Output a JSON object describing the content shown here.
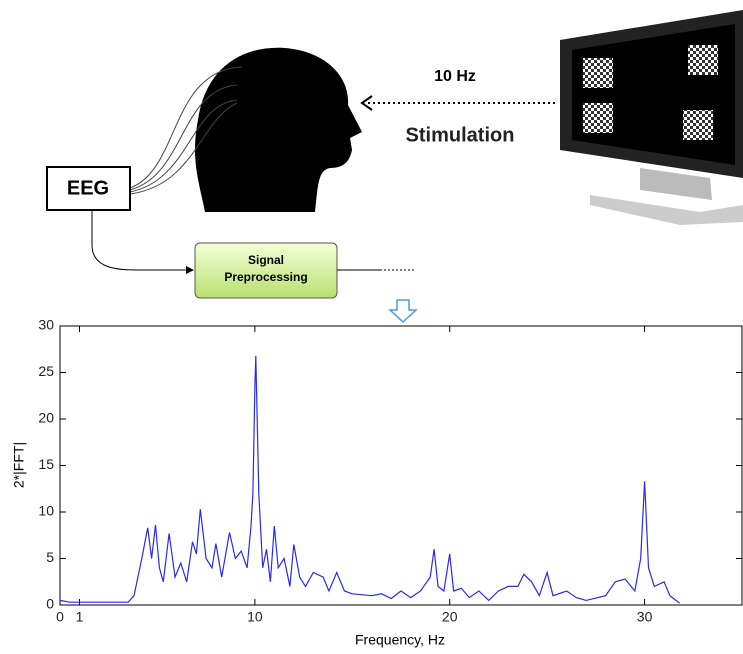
{
  "diagram": {
    "eeg": "EEG",
    "frequency": "10 Hz",
    "stimulation": "Stimulation",
    "processing": [
      "Signal",
      "Preprocessing"
    ]
  },
  "chart_data": {
    "type": "line",
    "xlabel": "Frequency, Hz",
    "ylabel": "2*|FFT|",
    "xlim": [
      0,
      35
    ],
    "ylim": [
      0,
      30
    ],
    "xticks": [
      0,
      1,
      10,
      20,
      30
    ],
    "yticks": [
      0,
      5,
      10,
      15,
      20,
      25,
      30
    ],
    "x": [
      0,
      0.5,
      1,
      2,
      3,
      3.5,
      3.8,
      4.2,
      4.5,
      4.7,
      4.9,
      5.1,
      5.3,
      5.6,
      5.9,
      6.2,
      6.5,
      6.8,
      7.0,
      7.2,
      7.5,
      7.8,
      8.0,
      8.3,
      8.7,
      9.0,
      9.3,
      9.6,
      9.8,
      9.9,
      10.0,
      10.05,
      10.2,
      10.4,
      10.6,
      10.8,
      11.0,
      11.2,
      11.5,
      11.8,
      12.0,
      12.3,
      12.6,
      13.0,
      13.5,
      13.8,
      14.2,
      14.6,
      15,
      16,
      16.5,
      17,
      17.5,
      18,
      18.5,
      19,
      19.2,
      19.4,
      19.7,
      20.0,
      20.2,
      20.6,
      21,
      21.5,
      22,
      22.5,
      23,
      23.5,
      23.8,
      24.2,
      24.6,
      25.0,
      25.3,
      26,
      26.5,
      27,
      28,
      28.5,
      29,
      29.5,
      29.8,
      30.0,
      30.2,
      30.5,
      31,
      31.3,
      31.8
    ],
    "series": [
      {
        "color": "#2a2aee",
        "values": [
          0.5,
          0.3,
          0.3,
          0.3,
          0.3,
          0.3,
          1,
          5,
          8.3,
          5,
          8.6,
          4,
          2.5,
          7.7,
          3,
          4.5,
          2.5,
          6.8,
          5.5,
          10.3,
          5,
          4,
          6.6,
          3,
          7.8,
          5,
          5.8,
          4,
          8.5,
          12,
          23.5,
          26.8,
          12,
          4,
          6,
          2.5,
          8.5,
          4,
          5,
          2,
          6.5,
          3,
          2,
          3.5,
          3,
          1.5,
          3.5,
          1.5,
          1.2,
          1,
          1.2,
          0.7,
          1.5,
          0.8,
          1.5,
          3,
          6,
          2,
          1.5,
          5.5,
          1.5,
          1.8,
          0.8,
          1.5,
          0.5,
          1.5,
          2,
          2,
          3.3,
          2.5,
          1,
          3.5,
          1,
          1.5,
          0.8,
          0.5,
          1,
          2.5,
          2.8,
          1.5,
          5,
          13.3,
          4,
          2,
          2.5,
          1,
          0.2
        ]
      }
    ]
  }
}
